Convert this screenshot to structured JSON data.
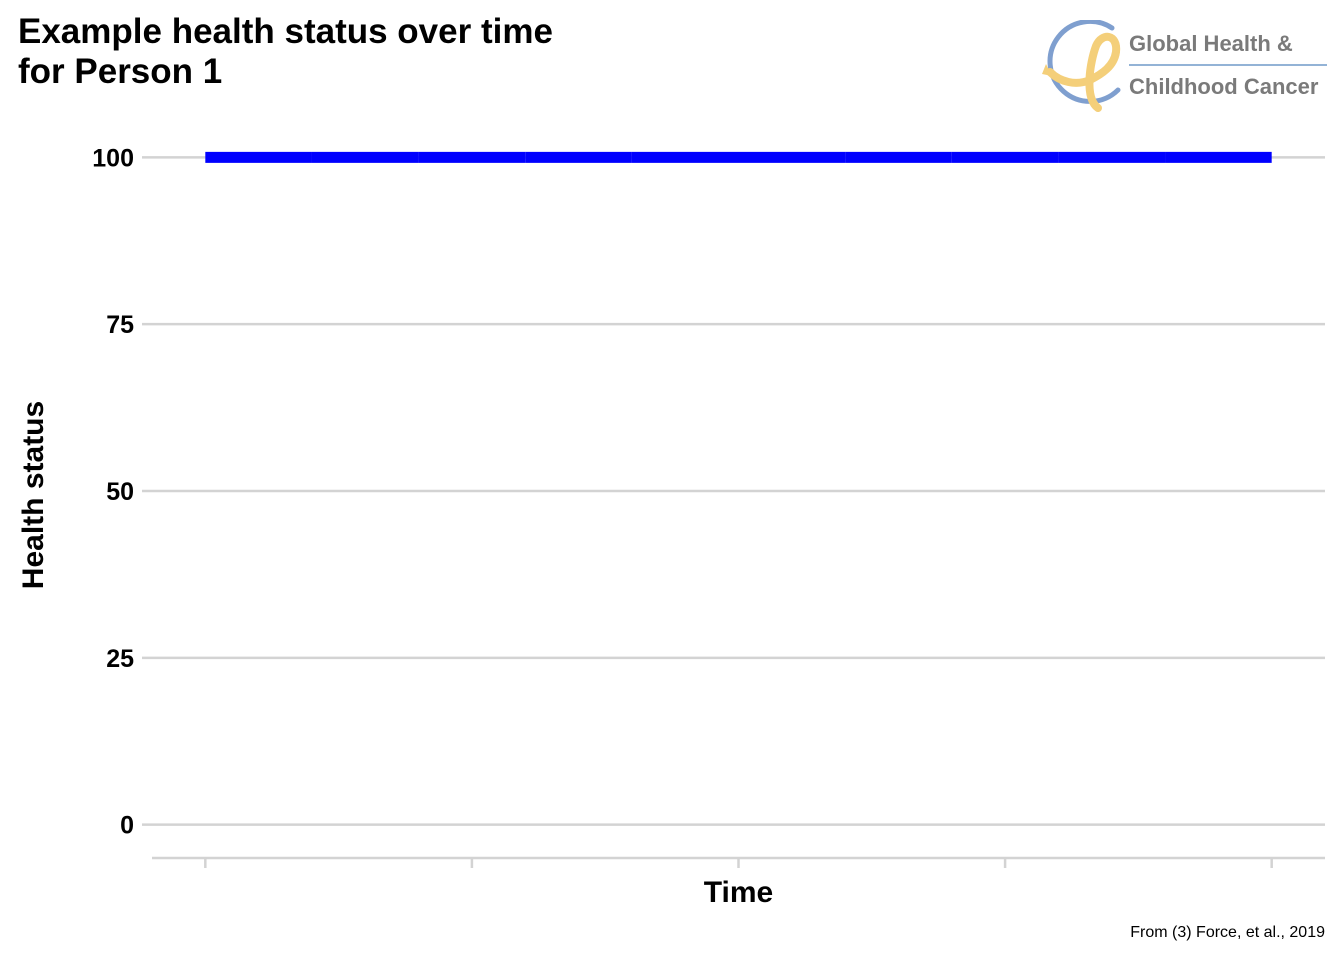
{
  "title_line1": "Example health status over time",
  "title_line2": "for Person 1",
  "logo": {
    "line1": "Global Health &",
    "line2": "Childhood Cancer",
    "colors": {
      "ring": "#7f9fcf",
      "ribbon": "#f4cf7a",
      "text": "#7a7a7a",
      "rule": "#93b3d6"
    }
  },
  "caption": "From (3) Force, et al., 2019",
  "colors": {
    "line": "#0000ff",
    "grid": "#d3d3d3",
    "text": "#000000",
    "background": "#ffffff"
  },
  "chart_data": {
    "type": "line",
    "title": "Example health status over time for Person 1",
    "xlabel": "Time",
    "ylabel": "Health status",
    "x": [
      0,
      1,
      2,
      3,
      4,
      5,
      6,
      7,
      8,
      9,
      10
    ],
    "series": [
      {
        "values": [
          100,
          100,
          100,
          100,
          100,
          100,
          100,
          100,
          100,
          100,
          100
        ],
        "color": "#0000ff"
      }
    ],
    "xlim": [
      -0.5,
      10.5
    ],
    "ylim": [
      -5,
      105
    ],
    "xticks": [
      0,
      2.5,
      5,
      7.5,
      10
    ],
    "xtick_labels": [
      "",
      "",
      "",
      "",
      ""
    ],
    "yticks": [
      0,
      25,
      50,
      75,
      100
    ],
    "ytick_labels": [
      "0",
      "25",
      "50",
      "75",
      "100"
    ],
    "grid": "horizontal",
    "legend": "none"
  }
}
